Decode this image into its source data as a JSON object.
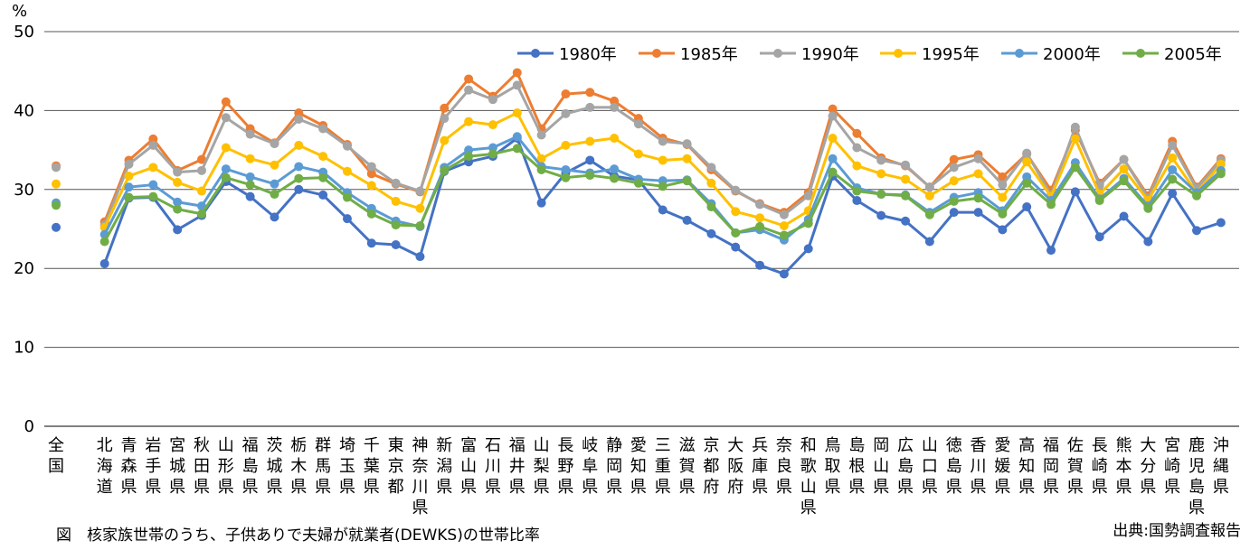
{
  "chart_data": {
    "type": "line",
    "ylabel": "%",
    "ylim": [
      0,
      50
    ],
    "yticks": [
      0,
      10,
      20,
      30,
      40,
      50
    ],
    "categories": [
      "全国",
      "",
      "北海道",
      "青森県",
      "岩手県",
      "宮城県",
      "秋田県",
      "山形県",
      "福島県",
      "茨城県",
      "栃木県",
      "群馬県",
      "埼玉県",
      "千葉県",
      "東京都",
      "神奈川県",
      "新潟県",
      "富山県",
      "石川県",
      "福井県",
      "山梨県",
      "長野県",
      "岐阜県",
      "静岡県",
      "愛知県",
      "三重県",
      "滋賀県",
      "京都府",
      "大阪府",
      "兵庫県",
      "奈良県",
      "和歌山県",
      "鳥取県",
      "島根県",
      "岡山県",
      "広島県",
      "山口県",
      "徳島県",
      "香川県",
      "愛媛県",
      "高知県",
      "福岡県",
      "佐賀県",
      "長崎県",
      "熊本県",
      "大分県",
      "宮崎県",
      "鹿児島県",
      "沖縄県"
    ],
    "series": [
      {
        "name": "1980年",
        "color": "#4472C4",
        "values": [
          25.2,
          null,
          20.6,
          28.9,
          29.0,
          24.9,
          26.7,
          31.0,
          29.1,
          26.5,
          30.0,
          29.3,
          26.3,
          23.2,
          23.0,
          21.5,
          32.3,
          33.5,
          34.2,
          36.5,
          28.3,
          32.1,
          33.7,
          31.7,
          31.2,
          27.4,
          26.1,
          24.4,
          22.7,
          20.4,
          19.3,
          22.5,
          31.7,
          28.6,
          26.7,
          26.0,
          23.4,
          27.1,
          27.1,
          24.9,
          27.8,
          22.3,
          29.7,
          24.0,
          26.6,
          23.4,
          29.5,
          24.8,
          25.8
        ]
      },
      {
        "name": "1985年",
        "color": "#ED7D31",
        "values": [
          33.0,
          null,
          25.9,
          33.7,
          36.4,
          32.4,
          33.8,
          41.1,
          37.7,
          35.9,
          39.7,
          38.1,
          35.7,
          32.0,
          30.7,
          29.7,
          40.3,
          44.0,
          41.8,
          44.8,
          37.7,
          42.1,
          42.3,
          41.2,
          39.0,
          36.5,
          35.7,
          32.5,
          29.8,
          28.2,
          27.1,
          29.6,
          40.2,
          37.1,
          34.0,
          33.0,
          30.3,
          33.8,
          34.4,
          31.6,
          34.5,
          29.9,
          37.5,
          30.8,
          33.8,
          29.2,
          36.1,
          30.3,
          33.9
        ]
      },
      {
        "name": "1990年",
        "color": "#A5A5A5",
        "values": [
          32.8,
          null,
          25.5,
          33.2,
          35.6,
          32.2,
          32.4,
          39.1,
          37.0,
          35.8,
          38.9,
          37.7,
          35.5,
          32.9,
          30.8,
          29.8,
          39.0,
          42.6,
          41.4,
          43.2,
          36.9,
          39.6,
          40.4,
          40.4,
          38.3,
          36.1,
          35.8,
          32.8,
          29.9,
          28.1,
          26.8,
          29.2,
          39.3,
          35.3,
          33.7,
          33.1,
          30.3,
          32.8,
          33.9,
          30.6,
          34.6,
          29.3,
          37.9,
          30.5,
          33.8,
          28.9,
          35.6,
          30.1,
          33.7
        ]
      },
      {
        "name": "1995年",
        "color": "#FFC000",
        "values": [
          30.7,
          null,
          25.2,
          31.7,
          32.8,
          30.9,
          29.8,
          35.3,
          33.9,
          33.1,
          35.6,
          34.2,
          32.3,
          30.5,
          28.5,
          27.6,
          36.2,
          38.6,
          38.2,
          39.7,
          33.9,
          35.6,
          36.1,
          36.5,
          34.5,
          33.7,
          33.9,
          30.8,
          27.2,
          26.4,
          25.4,
          27.3,
          36.5,
          33.0,
          32.0,
          31.3,
          29.2,
          31.1,
          32.0,
          29.0,
          33.5,
          29.1,
          36.4,
          29.4,
          32.6,
          28.6,
          34.0,
          29.6,
          33.2
        ]
      },
      {
        "name": "2000年",
        "color": "#5B9BD5",
        "values": [
          28.3,
          null,
          24.3,
          30.3,
          30.6,
          28.4,
          27.9,
          32.6,
          31.6,
          30.7,
          32.9,
          32.2,
          29.6,
          27.6,
          26.0,
          25.3,
          32.8,
          35.0,
          35.3,
          36.7,
          32.9,
          32.5,
          32.1,
          32.6,
          31.3,
          31.1,
          31.2,
          28.2,
          24.5,
          24.9,
          23.6,
          26.2,
          33.9,
          30.2,
          29.4,
          29.3,
          27.1,
          29.0,
          29.6,
          27.3,
          31.6,
          28.6,
          33.4,
          28.8,
          31.4,
          27.9,
          32.5,
          29.6,
          32.4
        ]
      },
      {
        "name": "2005年",
        "color": "#70AD47",
        "values": [
          28.0,
          null,
          23.4,
          29.0,
          29.1,
          27.5,
          26.9,
          31.5,
          30.6,
          29.4,
          31.4,
          31.5,
          29.0,
          26.9,
          25.5,
          25.4,
          32.4,
          34.2,
          34.5,
          35.2,
          32.5,
          31.5,
          31.8,
          31.4,
          30.8,
          30.4,
          31.1,
          27.8,
          24.5,
          25.3,
          24.2,
          25.7,
          32.2,
          29.8,
          29.4,
          29.2,
          26.8,
          28.5,
          28.9,
          26.9,
          30.8,
          28.1,
          32.8,
          28.6,
          31.1,
          27.6,
          31.3,
          29.2,
          32.0
        ]
      }
    ],
    "legend_position": "top-right",
    "grid": true
  },
  "caption": "図　核家族世帯のうち、子供ありで夫婦が就業者(DEWKS)の世帯比率",
  "source": "出典:国勢調査報告"
}
